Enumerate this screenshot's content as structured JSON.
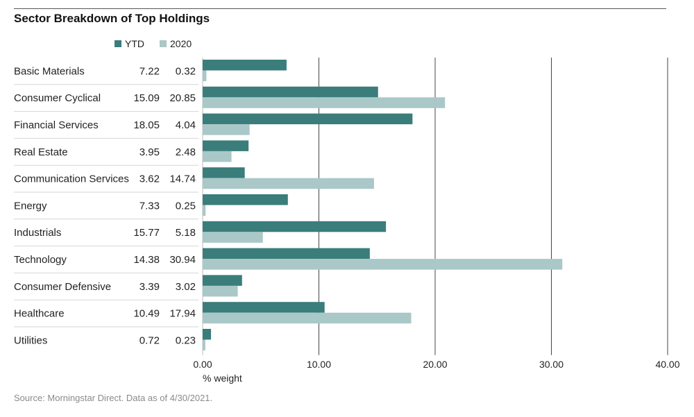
{
  "title": "Sector Breakdown of Top Holdings",
  "source": "Source: Morningstar Direct. Data as of 4/30/2021.",
  "colors": {
    "ytd": "#3a7d7b",
    "y2020": "#a9c8c7"
  },
  "chart_data": {
    "type": "bar",
    "orientation": "horizontal",
    "title": "Sector Breakdown of Top Holdings",
    "xlabel": "% weight",
    "xlim": [
      0,
      40
    ],
    "xticks": [
      "0.00",
      "10.00",
      "20.00",
      "30.00",
      "40.00"
    ],
    "xtick_values": [
      0,
      10,
      20,
      30,
      40
    ],
    "grid": "vertical",
    "legend": "top-left",
    "categories": [
      "Basic Materials",
      "Consumer Cyclical",
      "Financial Services",
      "Real Estate",
      "Communication Services",
      "Energy",
      "Industrials",
      "Technology",
      "Consumer Defensive",
      "Healthcare",
      "Utilities"
    ],
    "series": [
      {
        "name": "YTD",
        "values": [
          7.22,
          15.09,
          18.05,
          3.95,
          3.62,
          7.33,
          15.77,
          14.38,
          3.39,
          10.49,
          0.72
        ],
        "labels": [
          "7.22",
          "15.09",
          "18.05",
          "3.95",
          "3.62",
          "7.33",
          "15.77",
          "14.38",
          "3.39",
          "10.49",
          "0.72"
        ]
      },
      {
        "name": "2020",
        "values": [
          0.32,
          20.85,
          4.04,
          2.48,
          14.74,
          0.25,
          5.18,
          30.94,
          3.02,
          17.94,
          0.23
        ],
        "labels": [
          "0.32",
          "20.85",
          "4.04",
          "2.48",
          "14.74",
          "0.25",
          "5.18",
          "30.94",
          "3.02",
          "17.94",
          "0.23"
        ]
      }
    ]
  }
}
